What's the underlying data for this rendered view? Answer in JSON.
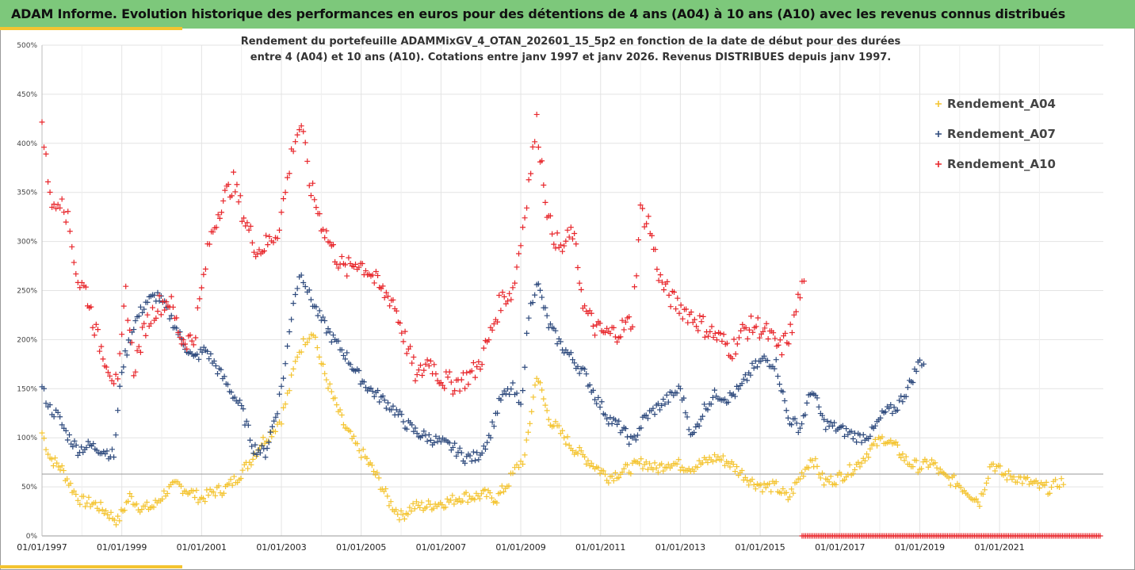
{
  "header": {
    "title": "ADAM Informe. Evolution historique des performances en euros pour des détentions de 4 ans (A04) à 10 ans (A10) avec les revenus connus distribués"
  },
  "colors": {
    "header_bg": "#7dc87b",
    "accent": "#f4c430",
    "A04": "#f4c430",
    "A07": "#2e4a7d",
    "A10": "#e8262b"
  },
  "chart_data": {
    "type": "scatter",
    "title_line1": "Rendement du portefeuille ADAMMixGV_4_OTAN_202601_15_5p2  en fonction de la date de début pour des durées",
    "title_line2": "entre 4 (A04) et 10 ans (A10). Cotations entre janv 1997 et janv 2026. Revenus DISTRIBUES depuis janv 1997.",
    "ylabel": "",
    "xlabel": "",
    "ylim": [
      0,
      500
    ],
    "xlim": [
      1997.0,
      2023.6
    ],
    "y_ticks": [
      "0%",
      "50%",
      "100%",
      "150%",
      "200%",
      "250%",
      "300%",
      "350%",
      "400%",
      "450%",
      "500%"
    ],
    "x_ticks": [
      "01/01/1997",
      "01/01/1999",
      "01/01/2001",
      "01/01/2003",
      "01/01/2005",
      "01/01/2007",
      "01/01/2009",
      "01/01/2011",
      "01/01/2013",
      "01/01/2015",
      "01/01/2017",
      "01/01/2019",
      "01/01/2021"
    ],
    "x_tick_years": [
      1997,
      1999,
      2001,
      2003,
      2005,
      2007,
      2009,
      2011,
      2013,
      2015,
      2017,
      2019,
      2021
    ],
    "reference_line": 63,
    "legend": [
      "Rendement_A04",
      "Rendement_A07",
      "Rendement_A10"
    ],
    "series": [
      {
        "name": "Rendement_A04",
        "x": [
          1997.0,
          1997.2,
          1997.5,
          1997.8,
          1998.0,
          1998.3,
          1998.6,
          1998.9,
          1999.2,
          1999.5,
          1999.8,
          2000.1,
          2000.4,
          2000.7,
          2001.0,
          2001.3,
          2001.6,
          2001.9,
          2002.2,
          2002.5,
          2002.8,
          2003.0,
          2003.2,
          2003.4,
          2003.6,
          2003.8,
          2004.0,
          2004.3,
          2004.6,
          2004.9,
          2005.1,
          2005.4,
          2005.7,
          2006.0,
          2006.3,
          2006.6,
          2006.9,
          2007.2,
          2007.5,
          2007.8,
          2008.1,
          2008.4,
          2008.7,
          2008.9,
          2009.1,
          2009.4,
          2009.7,
          2010.0,
          2010.3,
          2010.6,
          2010.9,
          2011.2,
          2011.5,
          2011.8,
          2012.1,
          2012.4,
          2012.7,
          2013.0,
          2013.3,
          2013.6,
          2013.9,
          2014.2,
          2014.5,
          2014.8,
          2015.1,
          2015.4,
          2015.7,
          2016.0,
          2016.3,
          2016.6,
          2016.9,
          2017.2,
          2017.5,
          2017.8,
          2018.1,
          2018.4,
          2018.7,
          2019.0,
          2019.3,
          2019.6,
          2019.9,
          2020.2,
          2020.5,
          2020.8,
          2021.1,
          2021.4,
          2021.7,
          2022.0,
          2022.3,
          2022.5
        ],
        "values": [
          105,
          80,
          68,
          45,
          35,
          33,
          25,
          15,
          40,
          28,
          30,
          45,
          52,
          45,
          38,
          45,
          48,
          60,
          75,
          95,
          108,
          120,
          150,
          185,
          200,
          210,
          175,
          140,
          110,
          90,
          80,
          60,
          35,
          20,
          30,
          30,
          33,
          35,
          40,
          40,
          42,
          38,
          55,
          70,
          80,
          165,
          120,
          105,
          90,
          80,
          70,
          60,
          65,
          70,
          75,
          68,
          75,
          72,
          70,
          75,
          80,
          75,
          65,
          55,
          50,
          50,
          38,
          60,
          80,
          55,
          58,
          65,
          75,
          90,
          100,
          90,
          75,
          70,
          75,
          60,
          55,
          45,
          35,
          75,
          62,
          60,
          55,
          50,
          48,
          55
        ]
      },
      {
        "name": "Rendement_A07",
        "x": [
          1997.0,
          1997.2,
          1997.4,
          1997.6,
          1997.9,
          1998.2,
          1998.5,
          1998.8,
          1999.0,
          1999.3,
          1999.6,
          1999.9,
          2000.2,
          2000.5,
          2000.8,
          2001.1,
          2001.4,
          2001.7,
          2002.0,
          2002.3,
          2002.6,
          2002.9,
          2003.1,
          2003.3,
          2003.5,
          2003.7,
          2004.0,
          2004.3,
          2004.6,
          2004.9,
          2005.2,
          2005.5,
          2005.8,
          2006.1,
          2006.4,
          2006.7,
          2007.0,
          2007.3,
          2007.6,
          2007.9,
          2008.2,
          2008.5,
          2008.8,
          2009.0,
          2009.2,
          2009.4,
          2009.7,
          2010.0,
          2010.3,
          2010.6,
          2010.9,
          2011.2,
          2011.5,
          2011.8,
          2012.1,
          2012.4,
          2012.7,
          2013.0,
          2013.3,
          2013.6,
          2013.9,
          2014.2,
          2014.5,
          2014.8,
          2015.1,
          2015.4,
          2015.7,
          2016.0,
          2016.3,
          2016.6,
          2016.9,
          2017.2,
          2017.5,
          2017.8,
          2018.1,
          2018.4,
          2018.7,
          2019.0
        ],
        "values": [
          150,
          130,
          122,
          105,
          88,
          92,
          88,
          82,
          170,
          215,
          238,
          245,
          225,
          200,
          180,
          190,
          170,
          150,
          130,
          90,
          85,
          130,
          175,
          240,
          270,
          245,
          220,
          200,
          185,
          165,
          150,
          140,
          130,
          115,
          105,
          100,
          95,
          90,
          80,
          80,
          100,
          140,
          150,
          130,
          225,
          260,
          215,
          195,
          180,
          165,
          140,
          120,
          110,
          95,
          120,
          130,
          140,
          150,
          100,
          130,
          145,
          140,
          150,
          170,
          180,
          175,
          120,
          110,
          150,
          115,
          110,
          105,
          100,
          105,
          125,
          130,
          150,
          178
        ]
      },
      {
        "name": "Rendement_A10",
        "x": [
          1997.0,
          1997.1,
          1997.3,
          1997.5,
          1997.7,
          1997.9,
          1998.1,
          1998.4,
          1998.7,
          1998.9,
          1999.1,
          1999.3,
          1999.6,
          1999.9,
          2000.2,
          2000.5,
          2000.8,
          2001.0,
          2001.2,
          2001.5,
          2001.8,
          2002.1,
          2002.4,
          2002.7,
          2002.9,
          2003.1,
          2003.3,
          2003.5,
          2003.7,
          2004.0,
          2004.3,
          2004.6,
          2004.9,
          2005.2,
          2005.5,
          2005.8,
          2006.1,
          2006.4,
          2006.7,
          2007.0,
          2007.3,
          2007.6,
          2007.9,
          2008.2,
          2008.5,
          2008.8,
          2009.0,
          2009.2,
          2009.4,
          2009.7,
          2010.0,
          2010.3,
          2010.6,
          2010.9,
          2011.2,
          2011.5,
          2011.8,
          2012.0,
          2012.2,
          2012.5,
          2012.8,
          2013.1,
          2013.4,
          2013.7,
          2014.0,
          2014.3,
          2014.6,
          2014.9,
          2015.2,
          2015.5,
          2015.8,
          2016.0
        ],
        "values": [
          420,
          380,
          330,
          350,
          310,
          260,
          250,
          200,
          170,
          150,
          250,
          170,
          215,
          235,
          240,
          200,
          200,
          250,
          300,
          340,
          360,
          320,
          290,
          300,
          310,
          350,
          400,
          420,
          360,
          320,
          290,
          270,
          280,
          270,
          250,
          240,
          200,
          160,
          180,
          160,
          155,
          160,
          170,
          200,
          240,
          250,
          300,
          360,
          420,
          320,
          290,
          310,
          230,
          210,
          205,
          210,
          220,
          330,
          320,
          260,
          240,
          230,
          220,
          210,
          200,
          190,
          210,
          215,
          205,
          190,
          210,
          250
        ]
      }
    ]
  }
}
